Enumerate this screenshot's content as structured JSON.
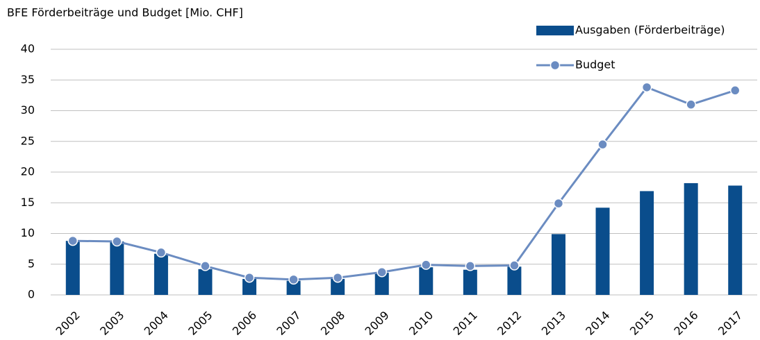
{
  "chart_data": {
    "type": "bar-line",
    "title": "BFE Förderbeiträge und Budget [Mio. CHF]",
    "categories": [
      "2002",
      "2003",
      "2004",
      "2005",
      "2006",
      "2007",
      "2008",
      "2009",
      "2010",
      "2011",
      "2012",
      "2013",
      "2014",
      "2015",
      "2016",
      "2017"
    ],
    "series": [
      {
        "name": "Ausgaben (Förderbeiträge)",
        "type": "bar",
        "color": "#0a4d8c",
        "values": [
          8.8,
          8.7,
          6.7,
          4.2,
          2.6,
          2.3,
          2.6,
          3.6,
          4.5,
          4.1,
          4.6,
          9.9,
          14.2,
          16.9,
          18.2,
          17.8
        ]
      },
      {
        "name": "Budget",
        "type": "line",
        "color": "#6b8cc1",
        "values": [
          8.8,
          8.7,
          6.9,
          4.7,
          2.8,
          2.5,
          2.8,
          3.7,
          4.9,
          4.7,
          4.8,
          14.9,
          24.5,
          33.8,
          31.0,
          33.3
        ]
      }
    ],
    "ylim": [
      0,
      40
    ],
    "yticks": [
      0,
      5,
      10,
      15,
      20,
      25,
      30,
      35,
      40
    ],
    "grid": true,
    "legend": "upper-right"
  }
}
